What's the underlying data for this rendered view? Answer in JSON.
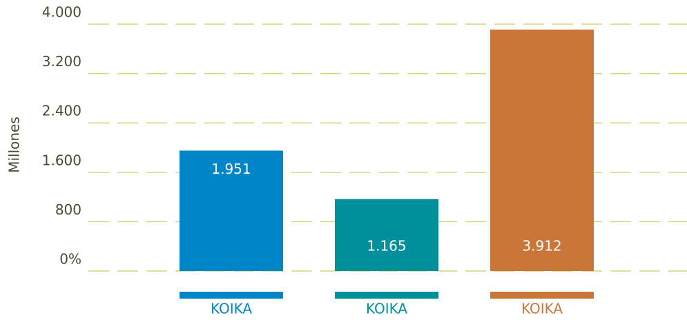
{
  "chart_data": {
    "type": "bar",
    "y_label": "Millones",
    "categories": [
      "KOIKA",
      "KOIKA",
      "KOIKA"
    ],
    "values": [
      1951,
      1165,
      3912
    ],
    "value_labels": [
      "1.951",
      "1.165",
      "3.912"
    ],
    "colors": [
      "#0085c9",
      "#00909b",
      "#c97638"
    ],
    "ylim": [
      0,
      4000
    ],
    "yticks": [
      {
        "value": 0,
        "label": "0%"
      },
      800,
      {
        "value": 1600,
        "label": "1.600"
      },
      {
        "value": 2400,
        "label": "2.400"
      },
      {
        "value": 3200,
        "label": "3.200"
      },
      {
        "value": 4000,
        "label": "4.000"
      }
    ],
    "grid": true
  }
}
